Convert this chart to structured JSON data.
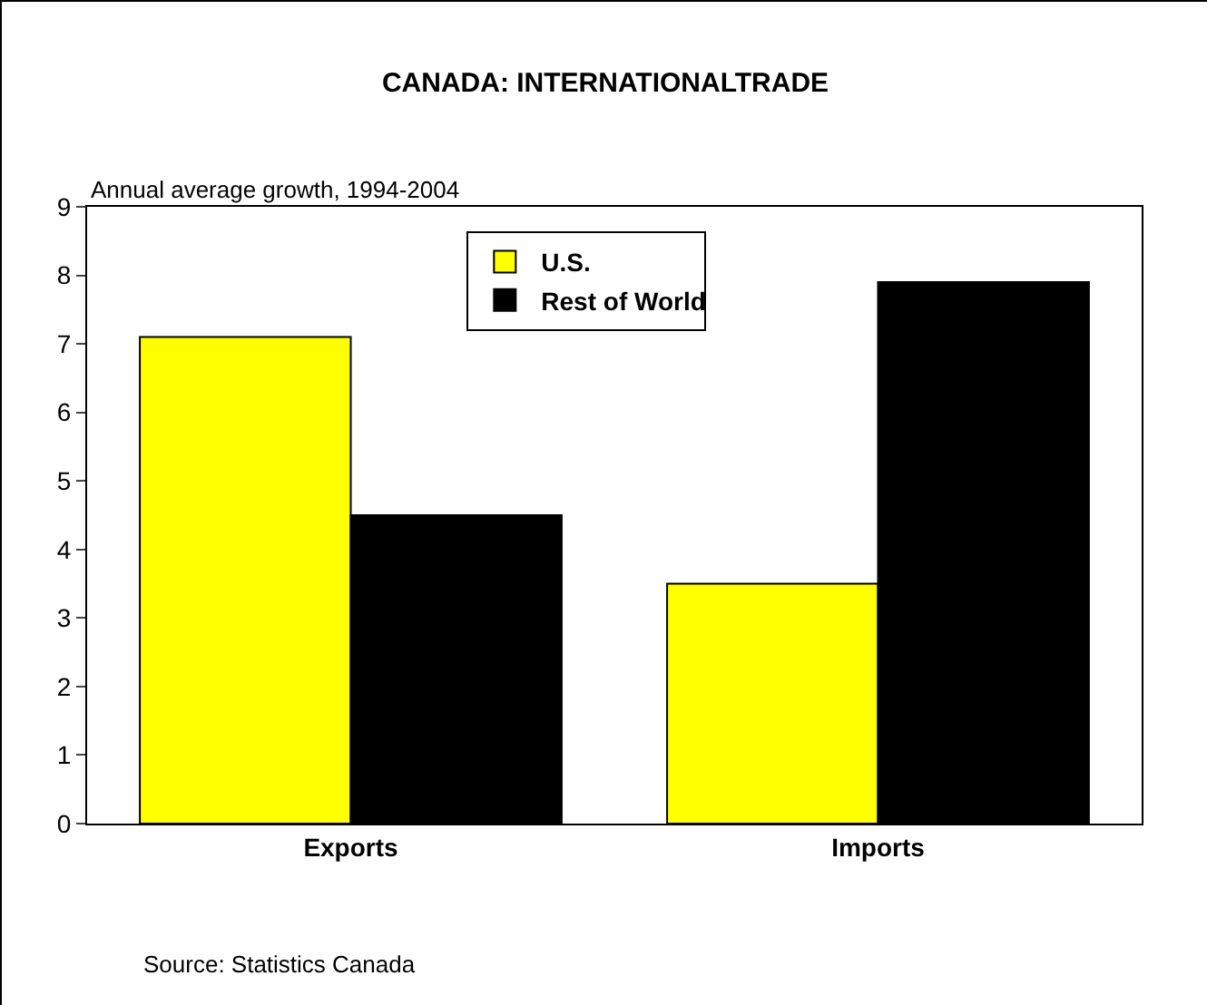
{
  "chart_data": {
    "type": "bar",
    "title": "CANADA: INTERNATIONALTRADE",
    "ylabel": "Annual average growth, 1994-2004",
    "categories": [
      "Exports",
      "Imports"
    ],
    "series": [
      {
        "name": "U.S.",
        "color": "#ffff00",
        "values": [
          7.1,
          3.5
        ]
      },
      {
        "name": "Rest of World",
        "color": "#000000",
        "values": [
          4.5,
          7.9
        ]
      }
    ],
    "ylim": [
      0,
      9
    ],
    "yticks": [
      0,
      1,
      2,
      3,
      4,
      5,
      6,
      7,
      8,
      9
    ],
    "grid": false,
    "legend": "top",
    "annotations": [
      "Source: Statistics Canada"
    ]
  }
}
